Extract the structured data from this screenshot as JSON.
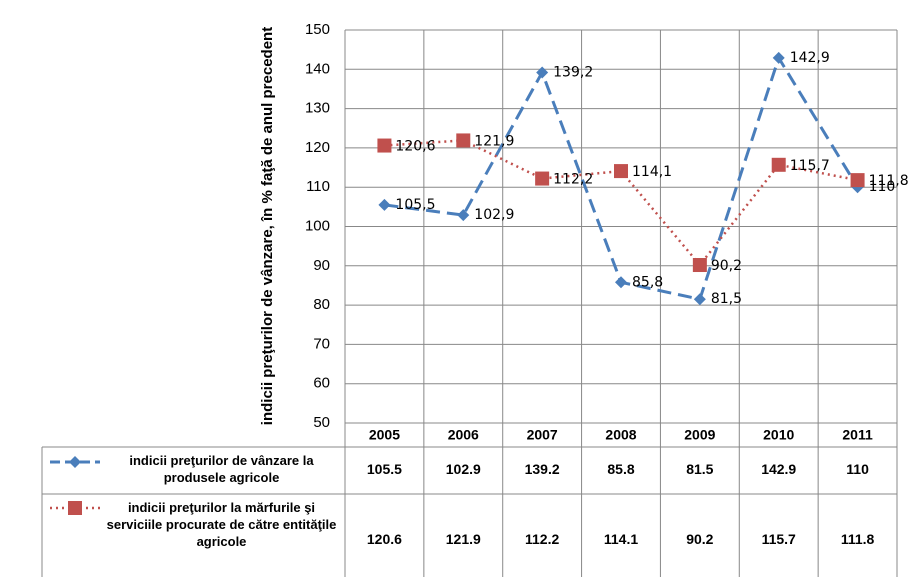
{
  "chart_data": {
    "type": "line",
    "y_label": "indicii preţurilor de vânzare, în % faţă de anul precedent",
    "categories": [
      "2005",
      "2006",
      "2007",
      "2008",
      "2009",
      "2010",
      "2011"
    ],
    "series": [
      {
        "name": "indicii preţurilor de vânzare la produsele agricole",
        "color": "#4a7ebb",
        "marker": "diamond",
        "dash": "dashed",
        "values": [
          105.5,
          102.9,
          139.2,
          85.8,
          81.5,
          142.9,
          110
        ],
        "value_labels": [
          "105,5",
          "102,9",
          "139,2",
          "85,8",
          "81,5",
          "142,9",
          "110"
        ]
      },
      {
        "name": "indicii preţurilor la mărfurile şi serviciile procurate de către entităţile agricole",
        "color": "#c0504d",
        "marker": "square",
        "dash": "dotted",
        "values": [
          120.6,
          121.9,
          112.2,
          114.1,
          90.2,
          115.7,
          111.8
        ],
        "value_labels": [
          "120,6",
          "121,9",
          "112,2",
          "114,1",
          "90,2",
          "115,7",
          "111,8"
        ]
      }
    ],
    "ylim": [
      50,
      150
    ],
    "yticks": [
      50,
      60,
      70,
      80,
      90,
      100,
      110,
      120,
      130,
      140,
      150
    ],
    "grid": true
  }
}
